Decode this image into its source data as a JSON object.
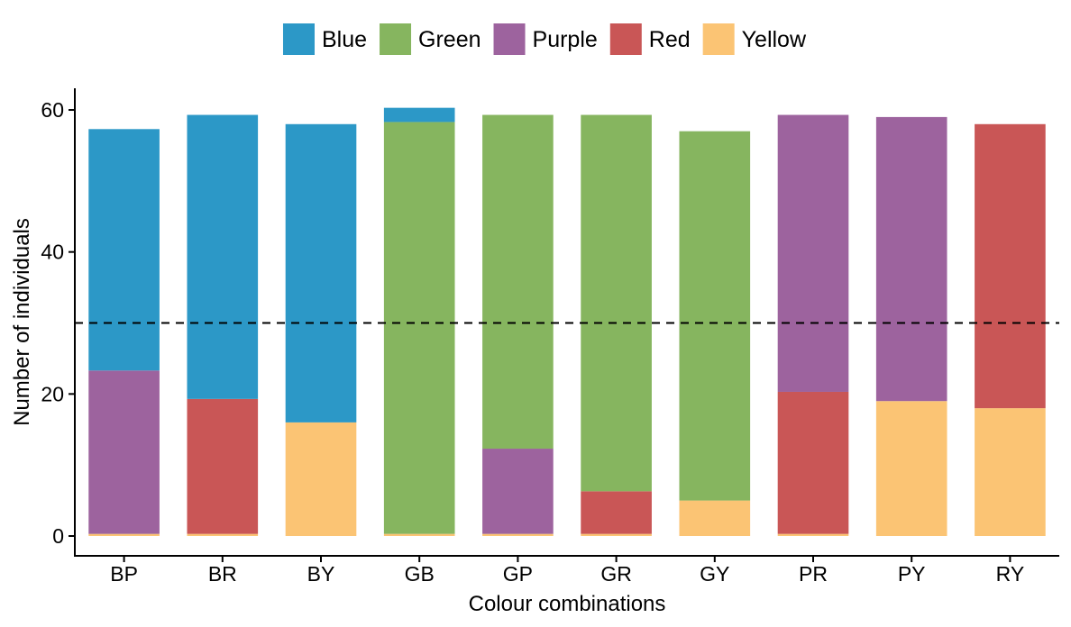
{
  "chart_data": {
    "type": "bar",
    "stacked": true,
    "title": "",
    "xlabel": "Colour combinations",
    "ylabel": "Number of individuals",
    "ylim": [
      0,
      63
    ],
    "yticks": [
      "0",
      "20",
      "40",
      "60"
    ],
    "grid": false,
    "legend_position": "top",
    "reference_line": {
      "y": 30,
      "style": "dashed"
    },
    "categories": [
      "BP",
      "BR",
      "BY",
      "GB",
      "GP",
      "GR",
      "GY",
      "PR",
      "PY",
      "RY"
    ],
    "series": [
      {
        "name": "Yellow",
        "color": "#FBC474",
        "values": [
          0.3,
          0.3,
          16,
          0.3,
          0.3,
          0.3,
          5,
          0.3,
          19,
          18
        ]
      },
      {
        "name": "Red",
        "color": "#C95656",
        "values": [
          0,
          19,
          0,
          0,
          0,
          6,
          0,
          20,
          0,
          40
        ]
      },
      {
        "name": "Purple",
        "color": "#9D639E",
        "values": [
          23,
          0,
          0,
          0,
          12,
          0,
          0,
          39,
          40,
          0
        ]
      },
      {
        "name": "Green",
        "color": "#86B55F",
        "values": [
          0,
          0,
          0,
          58,
          47,
          53,
          52,
          0,
          0,
          0
        ]
      },
      {
        "name": "Blue",
        "color": "#2C98C7",
        "values": [
          34,
          40,
          42,
          2,
          0,
          0,
          0,
          0,
          0,
          0
        ]
      }
    ],
    "legend": [
      {
        "name": "Blue",
        "color": "#2C98C7"
      },
      {
        "name": "Green",
        "color": "#86B55F"
      },
      {
        "name": "Purple",
        "color": "#9D639E"
      },
      {
        "name": "Red",
        "color": "#C95656"
      },
      {
        "name": "Yellow",
        "color": "#FBC474"
      }
    ]
  }
}
